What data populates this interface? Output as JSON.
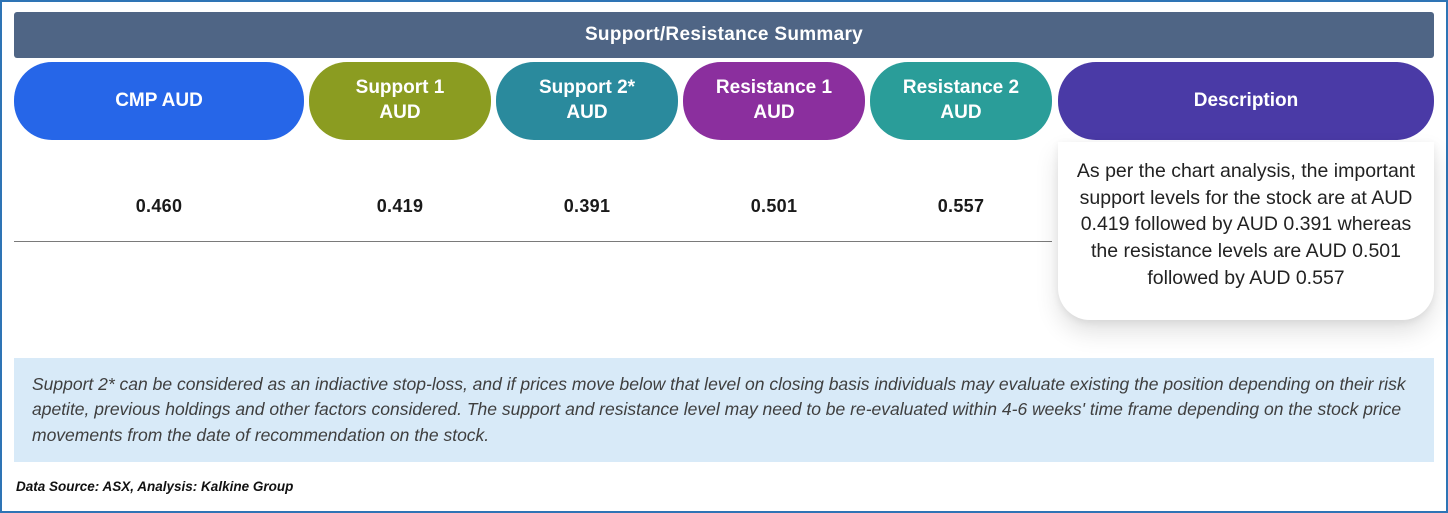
{
  "title": "Support/Resistance Summary",
  "table": {
    "columns": [
      {
        "label": "CMP AUD",
        "value": "0.460",
        "color": "#2666e8"
      },
      {
        "label": "Support 1\nAUD",
        "value": "0.419",
        "color": "#8b9c21"
      },
      {
        "label": "Support 2*\nAUD",
        "value": "0.391",
        "color": "#2a8a9d"
      },
      {
        "label": "Resistance 1\nAUD",
        "value": "0.501",
        "color": "#8b2f9e"
      },
      {
        "label": "Resistance 2\nAUD",
        "value": "0.557",
        "color": "#2a9d99"
      }
    ],
    "description_header": "Description",
    "description_color": "#4a3aa6",
    "description": "As per the chart analysis, the important support levels for the stock are at AUD 0.419 followed by AUD 0.391 whereas the resistance levels are AUD 0.501 followed by AUD 0.557"
  },
  "chart_data": {
    "type": "table",
    "title": "Support/Resistance Summary",
    "columns": [
      "CMP AUD",
      "Support 1 AUD",
      "Support 2* AUD",
      "Resistance 1 AUD",
      "Resistance 2 AUD"
    ],
    "values": [
      0.46,
      0.419,
      0.391,
      0.501,
      0.557
    ],
    "description": "As per the chart analysis, the important support levels for the stock are at AUD 0.419 followed by AUD 0.391 whereas the resistance levels are AUD 0.501 followed by AUD 0.557"
  },
  "colors": {
    "header_bg": "#4f6585",
    "note_bg": "#d8eaf8",
    "frame_border": "#2e74b5"
  },
  "footnote": "Support 2* can be considered as an indiactive stop-loss, and if prices move below that level on closing basis individuals may evaluate existing the position depending on their risk apetite, previous holdings and other factors considered. The support and resistance level may need to be re-evaluated within 4-6 weeks' time frame depending on the stock price movements from  the date of recommendation on the stock.",
  "source": "Data Source: ASX, Analysis: Kalkine Group"
}
